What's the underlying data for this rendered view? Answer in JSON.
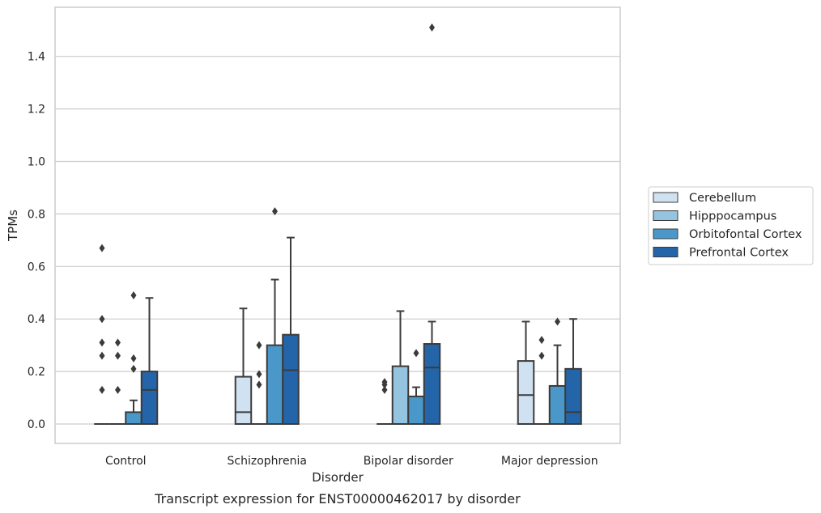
{
  "chart_data": {
    "type": "box",
    "title": "",
    "caption": "Transcript expression for ENST00000462017 by disorder",
    "xlabel": "Disorder",
    "ylabel": "TPMs",
    "ylim": [
      -0.07,
      1.59
    ],
    "yticks": [
      "0.0",
      "0.2",
      "0.4",
      "0.6",
      "0.8",
      "1.0",
      "1.2",
      "1.4"
    ],
    "grid": true,
    "legend_position": "right",
    "categories": [
      "Control",
      "Schizophrenia",
      "Bipolar disorder",
      "Major depression"
    ],
    "series": [
      {
        "name": "Cerebellum",
        "color": "#d0e1f2",
        "boxes": [
          {
            "q1": 0,
            "median": 0,
            "q3": 0,
            "whisker_low": 0,
            "whisker_high": 0,
            "outliers": [
              0.13,
              0.26,
              0.31,
              0.4,
              0.67
            ]
          },
          {
            "q1": 0,
            "median": 0.045,
            "q3": 0.18,
            "whisker_low": 0,
            "whisker_high": 0.44,
            "outliers": []
          },
          {
            "q1": 0,
            "median": 0,
            "q3": 0,
            "whisker_low": 0,
            "whisker_high": 0,
            "outliers": [
              0.13,
              0.15,
              0.16
            ]
          },
          {
            "q1": 0,
            "median": 0.11,
            "q3": 0.24,
            "whisker_low": 0,
            "whisker_high": 0.39,
            "outliers": []
          }
        ]
      },
      {
        "name": "Hipppocampus",
        "color": "#94c4df",
        "boxes": [
          {
            "q1": 0,
            "median": 0,
            "q3": 0,
            "whisker_low": 0,
            "whisker_high": 0,
            "outliers": [
              0.13,
              0.26,
              0.31
            ]
          },
          {
            "q1": 0,
            "median": 0,
            "q3": 0,
            "whisker_low": 0,
            "whisker_high": 0,
            "outliers": [
              0.15,
              0.19,
              0.3
            ]
          },
          {
            "q1": 0,
            "median": 0,
            "q3": 0.22,
            "whisker_low": 0,
            "whisker_high": 0.43,
            "outliers": []
          },
          {
            "q1": 0,
            "median": 0,
            "q3": 0,
            "whisker_low": 0,
            "whisker_high": 0,
            "outliers": [
              0.26,
              0.32
            ]
          }
        ]
      },
      {
        "name": "Orbitofontal Cortex",
        "color": "#4a98c9",
        "boxes": [
          {
            "q1": 0,
            "median": 0,
            "q3": 0.045,
            "whisker_low": 0,
            "whisker_high": 0.09,
            "outliers": [
              0.21,
              0.25,
              0.49
            ]
          },
          {
            "q1": 0,
            "median": 0,
            "q3": 0.3,
            "whisker_low": 0,
            "whisker_high": 0.55,
            "outliers": [
              0.81
            ]
          },
          {
            "q1": 0,
            "median": 0,
            "q3": 0.105,
            "whisker_low": 0,
            "whisker_high": 0.14,
            "outliers": [
              0.27
            ]
          },
          {
            "q1": 0,
            "median": 0,
            "q3": 0.145,
            "whisker_low": 0,
            "whisker_high": 0.3,
            "outliers": [
              0.39
            ]
          }
        ]
      },
      {
        "name": "Prefrontal Cortex",
        "color": "#2464a8",
        "boxes": [
          {
            "q1": 0,
            "median": 0.13,
            "q3": 0.2,
            "whisker_low": 0,
            "whisker_high": 0.48,
            "outliers": []
          },
          {
            "q1": 0,
            "median": 0.205,
            "q3": 0.34,
            "whisker_low": 0,
            "whisker_high": 0.71,
            "outliers": []
          },
          {
            "q1": 0,
            "median": 0.215,
            "q3": 0.305,
            "whisker_low": 0,
            "whisker_high": 0.39,
            "outliers": [
              1.51
            ]
          },
          {
            "q1": 0,
            "median": 0.045,
            "q3": 0.21,
            "whisker_low": 0,
            "whisker_high": 0.4,
            "outliers": []
          }
        ]
      }
    ]
  }
}
